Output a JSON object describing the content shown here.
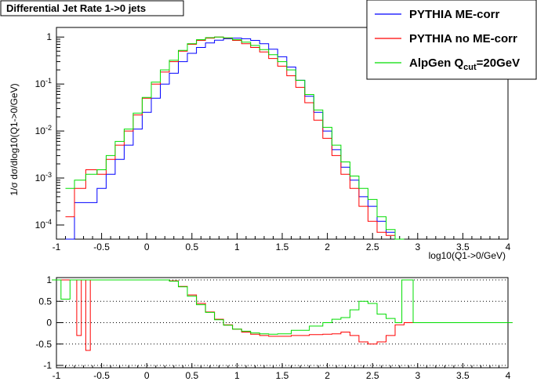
{
  "chart_data": [
    {
      "type": "line",
      "title": "Differential Jet Rate 1->0 jets",
      "ylabel": "1/σ dσ/dlog10(Q1->0/GeV)",
      "xlabel": "log10(Q1->0/GeV)",
      "xlim": [
        -1,
        4
      ],
      "ylim": [
        5e-05,
        1.6
      ],
      "yscale": "log",
      "x_ticks": [
        "-1",
        "-0.5",
        "0",
        "0.5",
        "1",
        "1.5",
        "2",
        "2.5",
        "3",
        "3.5",
        "4"
      ],
      "y_ticks": [
        "10-4",
        "10-3",
        "10-2",
        "10-1",
        "1"
      ],
      "legend_position": "top-right",
      "series": [
        {
          "name": "PYTHIA ME-corr",
          "color": "#0000ff",
          "x": [
            -0.85,
            -0.75,
            -0.6,
            -0.5,
            -0.4,
            -0.3,
            -0.2,
            -0.1,
            0,
            0.1,
            0.2,
            0.3,
            0.4,
            0.5,
            0.6,
            0.7,
            0.8,
            0.9,
            1.0,
            1.1,
            1.2,
            1.3,
            1.4,
            1.5,
            1.6,
            1.7,
            1.8,
            1.9,
            2.0,
            2.1,
            2.2,
            2.3,
            2.4,
            2.5,
            2.6,
            2.7,
            2.8
          ],
          "y": [
            5e-05,
            0.0003,
            0.0003,
            0.0006,
            0.0012,
            0.0025,
            0.005,
            0.011,
            0.025,
            0.05,
            0.1,
            0.17,
            0.3,
            0.45,
            0.6,
            0.75,
            0.86,
            0.92,
            0.95,
            0.92,
            0.85,
            0.72,
            0.55,
            0.38,
            0.23,
            0.12,
            0.055,
            0.025,
            0.01,
            0.004,
            0.0017,
            0.0009,
            0.0004,
            0.00025,
            0.00012,
            7e-05,
            5e-05
          ]
        },
        {
          "name": "PYTHIA no ME-corr",
          "color": "#ff0000",
          "x": [
            -0.85,
            -0.75,
            -0.6,
            -0.5,
            -0.4,
            -0.3,
            -0.2,
            -0.1,
            0,
            0.1,
            0.2,
            0.3,
            0.4,
            0.5,
            0.6,
            0.7,
            0.8,
            0.9,
            1.0,
            1.1,
            1.2,
            1.3,
            1.4,
            1.5,
            1.6,
            1.7,
            1.8,
            1.9,
            2.0,
            2.1,
            2.2,
            2.3,
            2.4,
            2.5,
            2.6,
            2.7,
            2.8
          ],
          "y": [
            0.00015,
            0.0006,
            0.0015,
            0.0012,
            0.0025,
            0.005,
            0.01,
            0.022,
            0.05,
            0.1,
            0.18,
            0.3,
            0.5,
            0.7,
            0.85,
            0.95,
            1.0,
            0.95,
            0.85,
            0.72,
            0.6,
            0.48,
            0.35,
            0.24,
            0.15,
            0.085,
            0.04,
            0.017,
            0.007,
            0.003,
            0.0012,
            0.0006,
            0.00025,
            0.00012,
            7e-05,
            6e-05,
            5e-05
          ]
        },
        {
          "name": "AlpGen Qcut=20GeV",
          "color": "#00dd00",
          "x": [
            -0.85,
            -0.75,
            -0.6,
            -0.5,
            -0.4,
            -0.3,
            -0.2,
            -0.1,
            0,
            0.1,
            0.2,
            0.3,
            0.4,
            0.5,
            0.6,
            0.7,
            0.8,
            0.9,
            1.0,
            1.1,
            1.2,
            1.3,
            1.4,
            1.5,
            1.6,
            1.7,
            1.8,
            1.9,
            2.0,
            2.1,
            2.2,
            2.3,
            2.4,
            2.5,
            2.6,
            2.7,
            2.8
          ],
          "y": [
            0.0006,
            0.0009,
            0.0012,
            0.0015,
            0.003,
            0.006,
            0.011,
            0.024,
            0.052,
            0.11,
            0.2,
            0.32,
            0.52,
            0.72,
            0.88,
            0.97,
            1.0,
            0.96,
            0.88,
            0.78,
            0.66,
            0.54,
            0.42,
            0.3,
            0.2,
            0.12,
            0.06,
            0.028,
            0.012,
            0.005,
            0.0022,
            0.0011,
            0.0006,
            0.00035,
            0.00015,
            8e-05,
            5e-05
          ]
        }
      ]
    },
    {
      "type": "line",
      "xlim": [
        -1,
        4
      ],
      "ylim": [
        -1,
        1
      ],
      "x_ticks": [
        "-1",
        "-0.5",
        "0",
        "0.5",
        "1",
        "1.5",
        "2",
        "2.5",
        "3",
        "3.5",
        "4"
      ],
      "y_ticks": [
        "-1",
        "-0.5",
        "0",
        "0.5",
        "1"
      ],
      "grid": true,
      "series": [
        {
          "color": "#ff0000",
          "x": [
            -1,
            -0.9,
            -0.8,
            -0.75,
            -0.7,
            -0.65,
            -0.6,
            -0.5,
            -0.3,
            0,
            0.2,
            0.3,
            0.4,
            0.5,
            0.6,
            0.7,
            0.8,
            0.9,
            1.0,
            1.1,
            1.2,
            1.3,
            1.4,
            1.5,
            1.7,
            1.9,
            2.0,
            2.1,
            2.2,
            2.3,
            2.4,
            2.5,
            2.6,
            2.7,
            2.8,
            2.9,
            3.0,
            4.0
          ],
          "y": [
            1,
            1,
            1,
            -0.3,
            1,
            -0.65,
            1,
            1,
            1,
            1,
            1,
            0.98,
            0.85,
            0.65,
            0.45,
            0.25,
            0.08,
            -0.05,
            -0.15,
            -0.22,
            -0.27,
            -0.3,
            -0.32,
            -0.32,
            -0.3,
            -0.28,
            -0.27,
            -0.26,
            -0.22,
            -0.3,
            -0.45,
            -0.5,
            -0.45,
            -0.3,
            -0.05,
            0,
            0,
            0
          ]
        },
        {
          "color": "#00dd00",
          "x": [
            -1,
            -0.9,
            -0.8,
            -0.7,
            -0.6,
            -0.5,
            -0.3,
            0,
            0.2,
            0.3,
            0.4,
            0.5,
            0.6,
            0.7,
            0.8,
            0.9,
            1.0,
            1.1,
            1.2,
            1.3,
            1.4,
            1.5,
            1.7,
            1.9,
            2.0,
            2.1,
            2.2,
            2.3,
            2.4,
            2.5,
            2.6,
            2.7,
            2.8,
            2.85,
            2.9,
            3.0,
            4.0
          ],
          "y": [
            1,
            0.55,
            1,
            1,
            1,
            1,
            1,
            1,
            1,
            0.97,
            0.84,
            0.62,
            0.42,
            0.24,
            0.07,
            -0.06,
            -0.15,
            -0.2,
            -0.24,
            -0.26,
            -0.27,
            -0.26,
            -0.18,
            -0.08,
            0,
            0.08,
            0.12,
            0.3,
            0.5,
            0.45,
            0.2,
            0.1,
            0.0,
            1,
            1,
            0,
            0
          ]
        }
      ]
    }
  ]
}
